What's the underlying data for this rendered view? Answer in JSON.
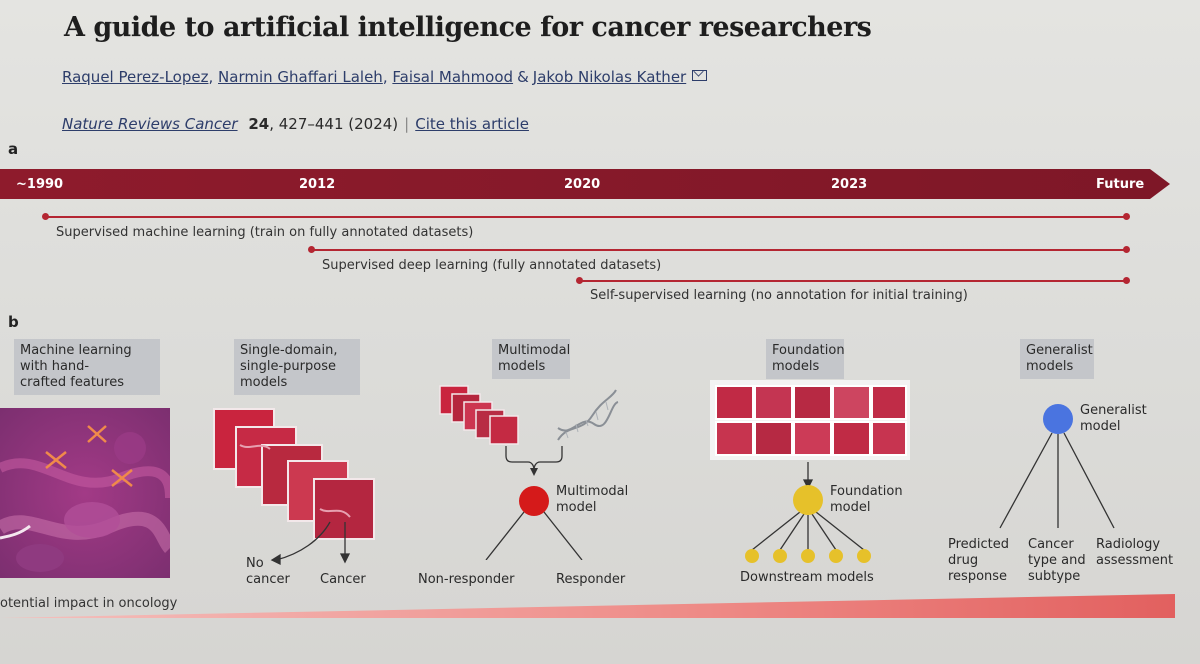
{
  "paper": {
    "title": "A guide to artificial intelligence for cancer researchers",
    "authors": [
      "Raquel Perez-Lopez",
      "Narmin Ghaffari Laleh",
      "Faisal Mahmood",
      "Jakob Nikolas Kather"
    ],
    "author_sep": ",",
    "author_amp": "&",
    "journal": "Nature Reviews Cancer",
    "volume": "24",
    "pages": ", 427–441 (2024)",
    "cite_link": "Cite this article"
  },
  "panel_a": {
    "letter": "a",
    "timeline_ticks": [
      "~1990",
      "2012",
      "2020",
      "2023",
      "Future"
    ],
    "eras": [
      "Supervised machine learning (train on fully annotated datasets)",
      "Supervised deep learning (fully annotated datasets)",
      "Self-supervised learning (no annotation for initial training)"
    ]
  },
  "panel_b": {
    "letter": "b",
    "stages": [
      {
        "title": [
          "Machine learning",
          "with hand-",
          "crafted features"
        ]
      },
      {
        "title": [
          "Single-domain,",
          "single-purpose",
          "models"
        ],
        "outputs": [
          "No",
          "cancer",
          "Cancer"
        ]
      },
      {
        "title": [
          "Multimodal",
          "models"
        ],
        "node": [
          "Multimodal",
          "model"
        ],
        "outputs": [
          "Non-responder",
          "Responder"
        ]
      },
      {
        "title": [
          "Foundation",
          "models"
        ],
        "node": [
          "Foundation",
          "model"
        ],
        "downstream": "Downstream models"
      },
      {
        "title": [
          "Generalist",
          "models"
        ],
        "node": [
          "Generalist",
          "model"
        ],
        "outputs": [
          [
            "Predicted",
            "drug",
            "response"
          ],
          [
            "Cancer",
            "type and",
            "subtype"
          ],
          [
            "Radiology",
            "assessment"
          ]
        ]
      }
    ],
    "impact_label": "otential impact in oncology"
  },
  "colors": {
    "accent": "#8c1c2b",
    "multimodal_node": "#d51a1a",
    "foundation_node": "#e6c12a",
    "generalist_node": "#4a74e0",
    "tissue": "#c8304a"
  }
}
